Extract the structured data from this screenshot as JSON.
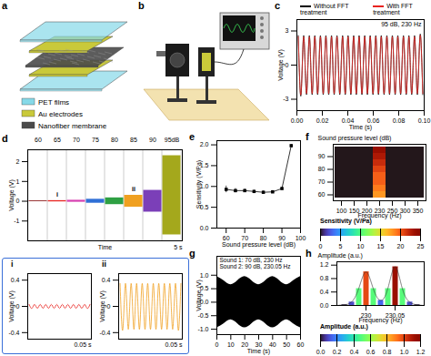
{
  "diagrams": [
    {
      "panel_label": "a",
      "legend": [
        {
          "name": "PET films",
          "color": "#86d9e8"
        },
        {
          "name": "Au electrodes",
          "color": "#c9c93a"
        },
        {
          "name": "Nanofiber membrane",
          "color": "#4a4a4a"
        }
      ]
    },
    {
      "panel_label": "b"
    }
  ],
  "chart_data": [
    {
      "panel_label": "c",
      "type": "line",
      "annotation": "95 dB, 230 Hz",
      "x_label": "Time (s)",
      "y_label": "Voltage (V)",
      "xlim": [
        0,
        0.1
      ],
      "xticks": [
        {
          "value": 0,
          "label": "0.00"
        },
        0.02,
        0.04,
        0.06,
        0.08,
        {
          "value": 0.1,
          "label": "0.10"
        }
      ],
      "ylim": [
        -4,
        4
      ],
      "yticks": [
        -3,
        0,
        3
      ],
      "legend": "top",
      "x": [
        0.0011,
        0.0033,
        0.0054,
        0.0076,
        0.0098,
        0.012,
        0.0141,
        0.0163,
        0.0185,
        0.0207,
        0.0228,
        0.025,
        0.0272,
        0.0293,
        0.0315,
        0.0337,
        0.0359,
        0.038,
        0.0402,
        0.0424,
        0.0446,
        0.0467,
        0.0489,
        0.0511,
        0.0533,
        0.0554,
        0.0576,
        0.0598,
        0.062,
        0.0641,
        0.0663,
        0.0685,
        0.0707,
        0.0728,
        0.075,
        0.0772,
        0.0793,
        0.0815,
        0.0837,
        0.0859,
        0.088,
        0.0902,
        0.0924,
        0.0946,
        0.0967,
        0.0989
      ],
      "series": [
        {
          "name": "Without FFT treatment",
          "color": "#000000",
          "values": [
            2.6,
            -2.6,
            2.6,
            -2.6,
            2.6,
            -2.6,
            2.6,
            -2.6,
            2.6,
            -2.6,
            2.6,
            -2.6,
            2.6,
            -2.6,
            2.6,
            -2.6,
            2.6,
            -2.6,
            2.6,
            -2.6,
            2.6,
            -2.6,
            2.6,
            -2.6,
            2.6,
            -2.6,
            2.6,
            -2.6,
            2.6,
            -2.6,
            2.6,
            -2.6,
            2.6,
            -2.6,
            2.6,
            -2.6,
            2.6,
            -2.6,
            2.6,
            -2.6,
            2.6,
            -2.6,
            2.6,
            -2.6,
            2.6,
            -2.6
          ]
        },
        {
          "name": "With FFT treatment",
          "color": "#e8231f",
          "values": [
            2.5,
            -2.5,
            2.5,
            -2.5,
            2.5,
            -2.5,
            2.5,
            -2.5,
            2.5,
            -2.5,
            2.5,
            -2.5,
            2.5,
            -2.5,
            2.5,
            -2.5,
            2.5,
            -2.5,
            2.5,
            -2.5,
            2.5,
            -2.5,
            2.5,
            -2.5,
            2.5,
            -2.5,
            2.5,
            -2.5,
            2.5,
            -2.5,
            2.5,
            -2.5,
            2.5,
            -2.5,
            2.5,
            -2.5,
            2.5,
            -2.5,
            2.5,
            -2.5,
            2.5,
            -2.5,
            2.5,
            -2.5,
            2.5,
            -2.5
          ]
        }
      ]
    },
    {
      "panel_label": "d",
      "type": "area",
      "x_label": "Time",
      "y_label": "Voltage (V)",
      "categories": [
        "60",
        "65",
        "70",
        "75",
        "80",
        "85",
        "90",
        "95dB"
      ],
      "upper": [
        0.02,
        0.03,
        0.05,
        0.1,
        0.17,
        0.3,
        0.55,
        2.3
      ],
      "lower": [
        -0.02,
        -0.03,
        -0.05,
        -0.1,
        -0.17,
        -0.3,
        -0.55,
        -1.7
      ],
      "colors": [
        "#8b1a1a",
        "#e8231f",
        "#d63fb0",
        "#2f6fd6",
        "#2ea043",
        "#f0a020",
        "#7b3fb8",
        "#a4a81c"
      ],
      "ylim": [
        -2,
        2.6
      ],
      "yticks": [
        -1,
        0,
        1,
        2
      ],
      "annotations": [
        {
          "category": "65",
          "text": "i"
        },
        {
          "category": "85",
          "text": "ii"
        }
      ],
      "scale_bar": "5 s"
    },
    {
      "panel_label": "i",
      "type": "line",
      "y_label": "Voltage (V)",
      "scale_bar": "0.05 s",
      "tick_labels": "y",
      "xlim": [
        0,
        0.05
      ],
      "ylim": [
        -0.5,
        0.5
      ],
      "yticks": [
        -0.4,
        0,
        0.4
      ],
      "x": [
        0.0011,
        0.0033,
        0.0054,
        0.0076,
        0.0098,
        0.012,
        0.0141,
        0.0163,
        0.0185,
        0.0207,
        0.0228,
        0.025,
        0.0272,
        0.0293,
        0.0315,
        0.0337,
        0.0359,
        0.038,
        0.0402,
        0.0424,
        0.0446,
        0.0467,
        0.0489
      ],
      "series": [
        {
          "color": "#e8231f",
          "values": [
            0.03,
            -0.03,
            0.03,
            -0.03,
            0.03,
            -0.03,
            0.03,
            -0.03,
            0.03,
            -0.03,
            0.03,
            -0.03,
            0.03,
            -0.03,
            0.03,
            -0.03,
            0.03,
            -0.03,
            0.03,
            -0.03,
            0.03,
            -0.03,
            0.03
          ]
        }
      ]
    },
    {
      "panel_label": "ii",
      "type": "line",
      "y_label": "Voltage (V)",
      "scale_bar": "0.05 s",
      "tick_labels": "y",
      "xlim": [
        0,
        0.05
      ],
      "ylim": [
        -0.5,
        0.5
      ],
      "yticks": [
        -0.4,
        0,
        0.4
      ],
      "x": [
        0.0011,
        0.0033,
        0.0054,
        0.0076,
        0.0098,
        0.012,
        0.0141,
        0.0163,
        0.0185,
        0.0207,
        0.0228,
        0.025,
        0.0272,
        0.0293,
        0.0315,
        0.0337,
        0.0359,
        0.038,
        0.0402,
        0.0424,
        0.0446,
        0.0467,
        0.0489
      ],
      "series": [
        {
          "color": "#f0a020",
          "values": [
            0.35,
            -0.35,
            0.35,
            -0.35,
            0.35,
            -0.35,
            0.35,
            -0.35,
            0.35,
            -0.35,
            0.35,
            -0.35,
            0.35,
            -0.35,
            0.35,
            -0.35,
            0.35,
            -0.35,
            0.35,
            -0.35,
            0.35,
            -0.35,
            0.35
          ]
        }
      ]
    },
    {
      "panel_label": "e",
      "type": "line",
      "marker": "square",
      "color": "#000000",
      "x_label": "Sound pressure level (dB)",
      "y_label": "Sensitivity (V/Pa)",
      "xlim": [
        55,
        100
      ],
      "xticks": [
        60,
        70,
        80,
        90,
        100
      ],
      "ylim": [
        0,
        2.1
      ],
      "yticks": [
        {
          "value": 0,
          "label": "0.0"
        },
        0.5,
        {
          "value": 1,
          "label": "1.0"
        },
        1.5,
        {
          "value": 2,
          "label": "2.0"
        }
      ],
      "x": [
        60,
        65,
        70,
        75,
        80,
        85,
        90,
        95
      ],
      "values": [
        0.93,
        0.9,
        0.9,
        0.88,
        0.86,
        0.87,
        0.95,
        1.98
      ],
      "errors": [
        0.08,
        0.05,
        0.04,
        0.03,
        0.03,
        0.03,
        0.03,
        0.03
      ]
    },
    {
      "panel_label": "f",
      "type": "heatmap",
      "x_label": "Frequency (Hz)",
      "y_label": "Sound pressure level (dB)",
      "x": [
        100,
        150,
        200,
        230,
        250,
        300,
        350
      ],
      "y": [
        60,
        65,
        70,
        75,
        80,
        85,
        90,
        95
      ],
      "yticks": [
        60,
        70,
        80,
        90
      ],
      "cells": [
        [
          0,
          0,
          0,
          18,
          0,
          0,
          0
        ],
        [
          0,
          0,
          0,
          19,
          0,
          0,
          0
        ],
        [
          0,
          0,
          0,
          20,
          0,
          0,
          0
        ],
        [
          0,
          0,
          0,
          20,
          0,
          0,
          0
        ],
        [
          0,
          0,
          0,
          21,
          0,
          0,
          0
        ],
        [
          0,
          0,
          0,
          22,
          0,
          0,
          0
        ],
        [
          0,
          0,
          0,
          23,
          0,
          0,
          0
        ],
        [
          0,
          0,
          0,
          24,
          0,
          0,
          0
        ]
      ],
      "colorbar_label": "Sensitivity (V/Pa)",
      "colorbar_range": [
        0,
        25
      ],
      "colorbar_ticks": [
        0,
        5,
        10,
        15,
        20,
        25
      ]
    },
    {
      "panel_label": "g",
      "type": "area",
      "color": "#000000",
      "x_label": "Time (s)",
      "y_label": "Voltage (V)",
      "annotations": [
        "Sound 1: 70 dB, 230 Hz",
        "Sound 2: 90 dB, 230.05 Hz"
      ],
      "xlim": [
        0,
        60
      ],
      "xticks": [
        0,
        10,
        20,
        30,
        40,
        50,
        60
      ],
      "ylim": [
        -1.2,
        1.7
      ],
      "yticks": [
        {
          "value": -1,
          "label": "-1.0"
        },
        -0.5,
        {
          "value": 0,
          "label": "0.0"
        },
        0.5,
        {
          "value": 1,
          "label": "1.0"
        }
      ],
      "x": [
        0,
        5,
        10,
        15,
        20,
        25,
        30,
        35,
        40,
        45,
        50,
        55,
        60
      ],
      "upper": [
        0.95,
        0.8,
        0.65,
        0.8,
        0.95,
        0.8,
        0.65,
        0.8,
        0.95,
        0.8,
        0.65,
        0.8,
        0.95
      ],
      "lower": [
        -0.95,
        -0.8,
        -0.65,
        -0.8,
        -0.95,
        -0.8,
        -0.65,
        -0.8,
        -0.95,
        -0.8,
        -0.65,
        -0.8,
        -0.95
      ]
    },
    {
      "panel_label": "h",
      "type": "line",
      "x_label": "Frequency (Hz)",
      "y_label": "Amplitude (a.u.)",
      "xlim": [
        229.95,
        230.1
      ],
      "xticks": [
        230,
        230.05
      ],
      "ylim": [
        0,
        1.3
      ],
      "yticks": [
        {
          "value": 0,
          "label": "0.0"
        },
        0.4,
        0.8,
        1.2
      ],
      "x": [
        229.95,
        229.9625,
        229.975,
        229.9875,
        230,
        230.0125,
        230.025,
        230.0375,
        230.05,
        230.0625,
        230.075,
        230.0875,
        230.1
      ],
      "values": [
        0,
        0.02,
        0.1,
        0.5,
        1.0,
        0.5,
        0.15,
        0.5,
        1.15,
        0.5,
        0.1,
        0.02,
        0
      ],
      "colorbar_label": "Amplitude (a.u.)",
      "colorbar_range": [
        0,
        1.2
      ],
      "colorbar_ticks": [
        {
          "value": 0,
          "label": "0.0"
        },
        0.2,
        0.4,
        0.6,
        0.8,
        {
          "value": 1,
          "label": "1.0"
        },
        1.2
      ]
    }
  ]
}
